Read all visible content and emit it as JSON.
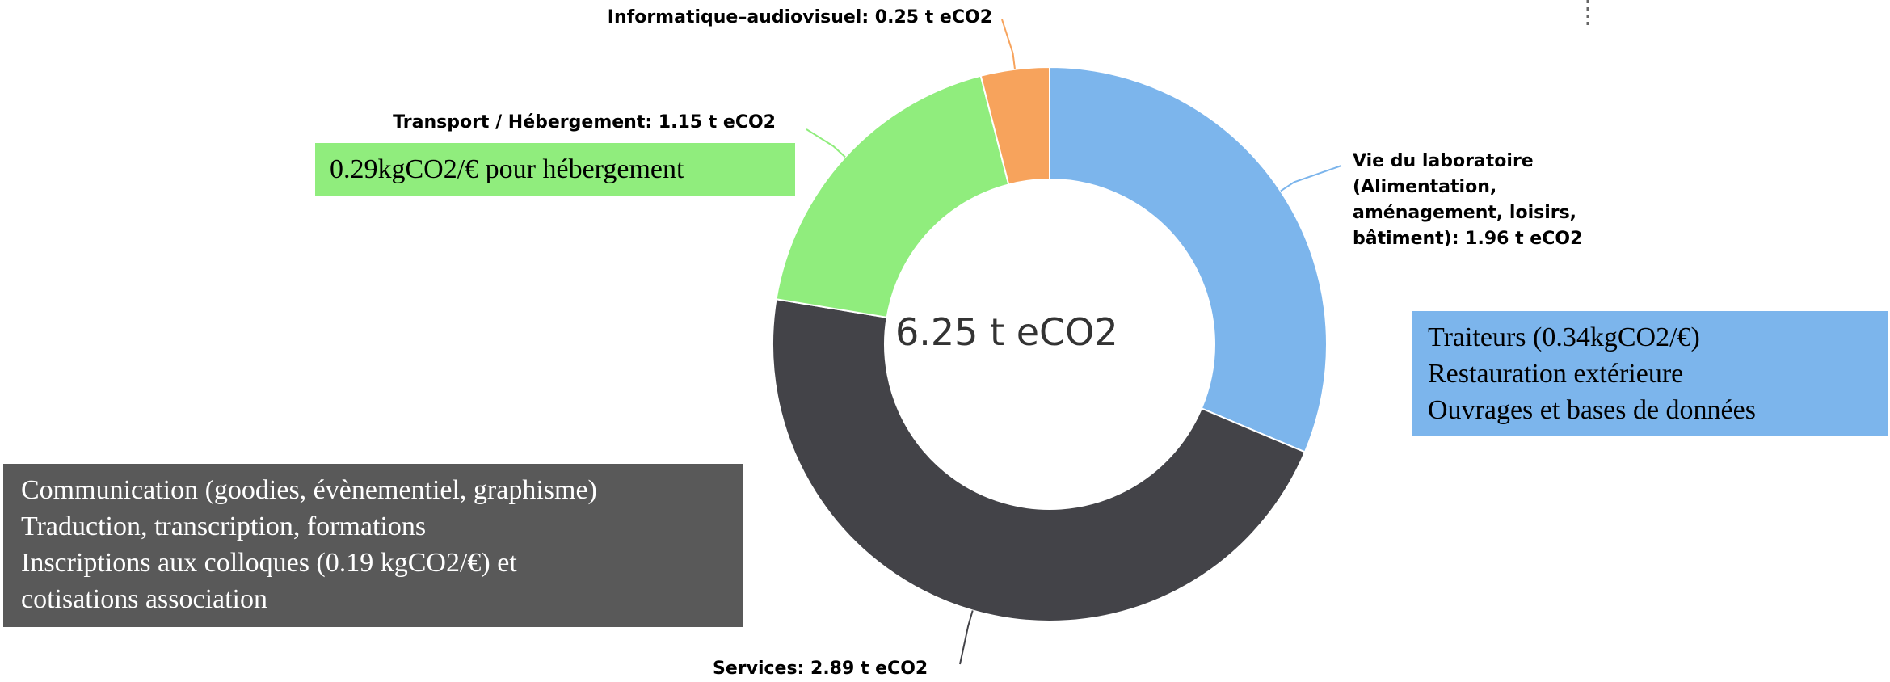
{
  "chart_data": {
    "type": "pie",
    "donut": true,
    "values": [
      1.96,
      2.89,
      1.15,
      0.25
    ],
    "value_labels": [
      "Vie du laboratoire (Alimentation, aménagement, loisirs, bâtiment): 1.96 t eCO2",
      "Services: 2.89 t eCO2",
      "Transport / Hébergement: 1.15 t eCO2",
      "Informatique–audiovisuel: 0.25 t eCO2"
    ],
    "colors": [
      "#7cb5ec",
      "#434348",
      "#90ed7d",
      "#f7a35c"
    ],
    "center_label": "6.25 t eCO2",
    "annotations": [
      {
        "color": "#90ed7d",
        "text_color": "#000000",
        "lines": [
          "0.29kgCO2/€ pour hébergement"
        ]
      },
      {
        "color": "#7cb5ec",
        "text_color": "#000000",
        "lines": [
          "Traiteurs (0.34kgCO2/€)",
          "Restauration extérieure",
          "Ouvrages et bases de données"
        ]
      },
      {
        "color": "#595959",
        "text_color": "#ffffff",
        "lines": [
          "Communication (goodies, évènementiel, graphisme)",
          "Traduction, transcription, formations",
          "Inscriptions aux colloques (0.19 kgCO2/€) et",
          "cotisations association"
        ]
      }
    ]
  }
}
